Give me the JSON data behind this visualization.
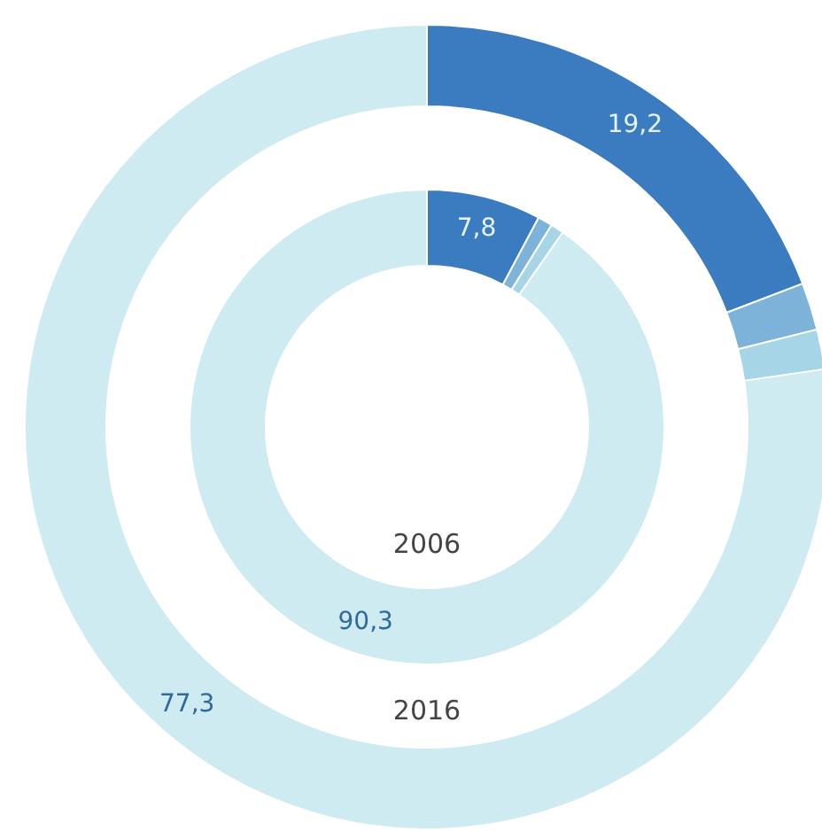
{
  "chart_data": [
    {
      "type": "donut",
      "title": "2016",
      "categories": [
        null,
        null,
        null,
        null
      ],
      "colors": [
        "#3b7bbf",
        "#7db3d8",
        "#a6d5e8",
        "#cdebf1"
      ],
      "values": [
        19.2,
        1.9,
        1.6,
        77.3
      ],
      "value_labels": [
        "19,2",
        null,
        null,
        "77,3"
      ]
    },
    {
      "type": "donut",
      "title": "2006",
      "categories": [
        null,
        null,
        null,
        null
      ],
      "colors": [
        "#3b7bbf",
        "#7db3d8",
        "#a6d5e8",
        "#cdebf1"
      ],
      "values": [
        7.8,
        1.0,
        0.9,
        90.3
      ],
      "value_labels": [
        "7,8",
        null,
        null,
        "90,3"
      ]
    }
  ]
}
